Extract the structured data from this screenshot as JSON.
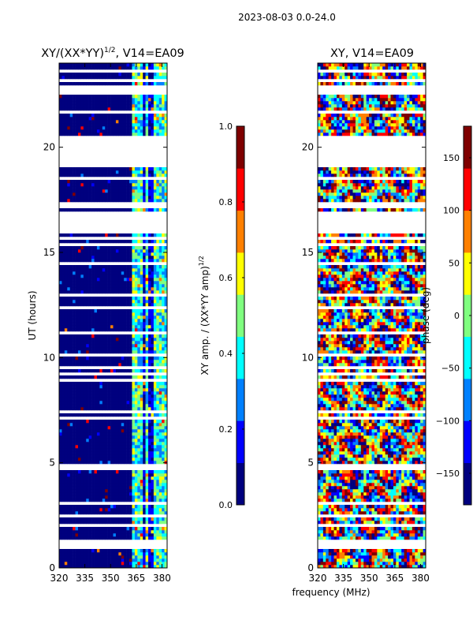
{
  "figure": {
    "suptitle": "2023-08-03 0.0-24.0",
    "shared_xlabel": "frequency (MHz)",
    "shared_ylabel": "UT (hours)"
  },
  "colormap": [
    "#00007f",
    "#0000ff",
    "#0080ff",
    "#00ffff",
    "#80ff80",
    "#ffff00",
    "#ff8000",
    "#ff0000",
    "#7f0000"
  ],
  "chart_data": [
    {
      "id": "amp",
      "type": "heatmap",
      "title": "XY/(XX*YY)",
      "title_suffix": "1/2",
      "title_tail": ", V14=EA09",
      "xlabel": "frequency (MHz)",
      "ylabel": "UT (hours)",
      "xlim": [
        320,
        383
      ],
      "ylim": [
        0,
        24
      ],
      "xticks": [
        "320",
        "335",
        "350",
        "365",
        "380"
      ],
      "xtick_values": [
        320,
        335,
        350,
        365,
        380
      ],
      "yticks": [
        "0",
        "5",
        "10",
        "15",
        "20"
      ],
      "ytick_values": [
        0,
        5,
        10,
        15,
        20
      ],
      "data_gaps_hours": [
        [
          1.0,
          1.3
        ],
        [
          15.9,
          16.9
        ],
        [
          17.2,
          17.4
        ],
        [
          19.1,
          20.5
        ],
        [
          22.5,
          22.9
        ]
      ],
      "bright_band_mhz": [
        363,
        383
      ],
      "colorbar": {
        "label": "XY amp. / (XX*YY amp)",
        "label_suffix": "1/2",
        "range": [
          0.0,
          1.0
        ],
        "ticks": [
          "0.0",
          "0.2",
          "0.4",
          "0.6",
          "0.8",
          "1.0"
        ],
        "tick_values": [
          0.0,
          0.2,
          0.4,
          0.6,
          0.8,
          1.0
        ]
      }
    },
    {
      "id": "phase",
      "type": "heatmap",
      "title": "XY, V14=EA09",
      "xlabel": "frequency (MHz)",
      "ylabel": "",
      "xlim": [
        320,
        383
      ],
      "ylim": [
        0,
        24
      ],
      "xticks": [
        "320",
        "335",
        "350",
        "365",
        "380"
      ],
      "xtick_values": [
        320,
        335,
        350,
        365,
        380
      ],
      "yticks": [
        "0",
        "5",
        "10",
        "15",
        "20"
      ],
      "ytick_values": [
        0,
        5,
        10,
        15,
        20
      ],
      "data_gaps_hours": [
        [
          1.0,
          1.3
        ],
        [
          15.9,
          16.9
        ],
        [
          17.2,
          17.4
        ],
        [
          19.1,
          20.5
        ],
        [
          22.5,
          22.9
        ]
      ],
      "colorbar": {
        "label": "phase (deg)",
        "range": [
          -180,
          180
        ],
        "ticks": [
          "−150",
          "−100",
          "−50",
          "0",
          "50",
          "100",
          "150"
        ],
        "tick_values": [
          -150,
          -100,
          -50,
          0,
          50,
          100,
          150
        ]
      }
    }
  ]
}
